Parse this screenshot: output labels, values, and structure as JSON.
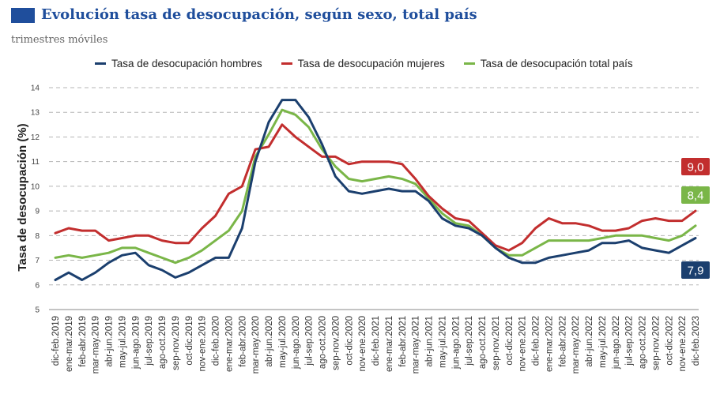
{
  "header": {
    "title": "Evolución tasa de desocupación, según sexo, total país",
    "subtitle": "trimestres móviles"
  },
  "chart_data": {
    "type": "line",
    "ylabel": "Tasa de desocupación (%)",
    "ylim": [
      5,
      14
    ],
    "yticks": [
      5,
      6,
      7,
      8,
      9,
      10,
      11,
      12,
      13,
      14
    ],
    "grid": "horizontal dashed",
    "legend_position": "top",
    "categories": [
      "dic-feb.2019",
      "ene-mar.2019",
      "feb-abr.2019",
      "mar-may.2019",
      "abr-jun.2019",
      "may-jul.2019",
      "jun-ago.2019",
      "jul-sep.2019",
      "ago-oct.2019",
      "sep-nov.2019",
      "oct-dic.2019",
      "nov-ene.2019",
      "dic-feb.2020",
      "ene-mar.2020",
      "feb-abr.2020",
      "mar-may.2020",
      "abr-jun.2020",
      "may-jul.2020",
      "jun-ago.2020",
      "jul-sep.2020",
      "ago-oct.2020",
      "sep-nov.2020",
      "oct-dic.2020",
      "nov-ene.2020",
      "dic-feb.2021",
      "ene-mar.2021",
      "feb-abr.2021",
      "mar-may.2021",
      "abr-jun.2021",
      "may-jul.2021",
      "jun-ago.2021",
      "jul-sep.2021",
      "ago-oct.2021",
      "sep-nov.2021",
      "oct-dic.2021",
      "nov-ene.2021",
      "dic-feb.2022",
      "ene-mar.2022",
      "feb-abr.2022",
      "mar-may.2022",
      "abr-jun.2022",
      "may-jul.2022",
      "jun-ago.2022",
      "jul-sep.2022",
      "ago-oct.2022",
      "sep-nov.2022",
      "oct-dic.2022",
      "nov-ene.2022",
      "dic-feb.2023"
    ],
    "series": [
      {
        "name": "Tasa de desocupación hombres",
        "color": "#1b3f6e",
        "end_label": "7,9",
        "values": [
          6.2,
          6.5,
          6.2,
          6.5,
          6.9,
          7.2,
          7.3,
          6.8,
          6.6,
          6.3,
          6.5,
          6.8,
          7.1,
          7.1,
          8.3,
          11.0,
          12.6,
          13.5,
          13.5,
          12.8,
          11.7,
          10.4,
          9.8,
          9.7,
          9.8,
          9.9,
          9.8,
          9.8,
          9.4,
          8.7,
          8.4,
          8.3,
          8.0,
          7.5,
          7.1,
          6.9,
          6.9,
          7.1,
          7.2,
          7.3,
          7.4,
          7.7,
          7.7,
          7.8,
          7.5,
          7.4,
          7.3,
          7.6,
          7.9
        ]
      },
      {
        "name": "Tasa de desocupación mujeres",
        "color": "#c22e2e",
        "end_label": "9,0",
        "values": [
          8.1,
          8.3,
          8.2,
          8.2,
          7.8,
          7.9,
          8.0,
          8.0,
          7.8,
          7.7,
          7.7,
          8.3,
          8.8,
          9.7,
          10.0,
          11.5,
          11.6,
          12.5,
          12.0,
          11.6,
          11.2,
          11.2,
          10.9,
          11.0,
          11.0,
          11.0,
          10.9,
          10.3,
          9.6,
          9.1,
          8.7,
          8.6,
          8.1,
          7.6,
          7.4,
          7.7,
          8.3,
          8.7,
          8.5,
          8.5,
          8.4,
          8.2,
          8.2,
          8.3,
          8.6,
          8.7,
          8.6,
          8.6,
          9.0
        ]
      },
      {
        "name": "Tasa de desocupación total país",
        "color": "#7ab648",
        "end_label": "8,4",
        "values": [
          7.1,
          7.2,
          7.1,
          7.2,
          7.3,
          7.5,
          7.5,
          7.3,
          7.1,
          6.9,
          7.1,
          7.4,
          7.8,
          8.2,
          9.0,
          11.2,
          12.1,
          13.1,
          12.9,
          12.4,
          11.5,
          10.8,
          10.3,
          10.2,
          10.3,
          10.4,
          10.3,
          10.1,
          9.5,
          8.9,
          8.5,
          8.4,
          8.0,
          7.5,
          7.2,
          7.2,
          7.5,
          7.8,
          7.8,
          7.8,
          7.8,
          7.9,
          8.0,
          8.0,
          8.0,
          7.9,
          7.8,
          8.0,
          8.4
        ]
      }
    ]
  }
}
